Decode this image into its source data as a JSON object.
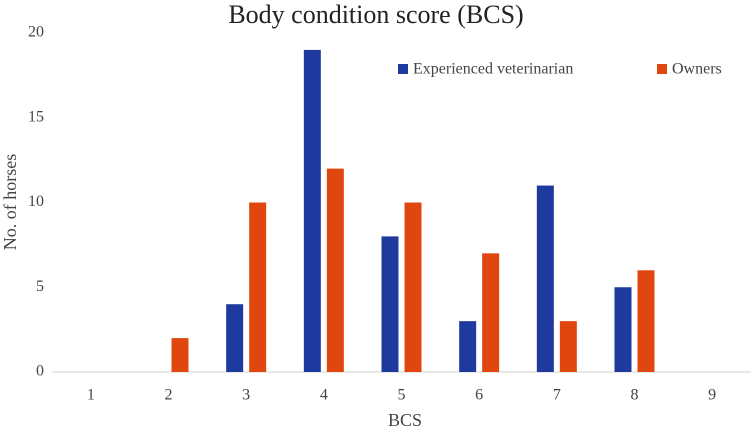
{
  "chart_data": {
    "type": "bar",
    "title": "Body condition score (BCS)",
    "x_label": "BCS",
    "y_label": "No. of horses",
    "categories": [
      "1",
      "2",
      "3",
      "4",
      "5",
      "6",
      "7",
      "8",
      "9"
    ],
    "series": [
      {
        "name": "Experienced veterinarian",
        "color": "#1f3a9e",
        "values": [
          0,
          0,
          4,
          19,
          8,
          3,
          11,
          5,
          0
        ]
      },
      {
        "name": "Owners",
        "color": "#e0470e",
        "values": [
          0,
          2,
          10,
          12,
          10,
          7,
          3,
          6,
          0
        ]
      }
    ],
    "ylim": [
      0,
      20
    ],
    "yticks": [
      0,
      5,
      10,
      15,
      20
    ],
    "grid": false,
    "legend": "top-right"
  }
}
